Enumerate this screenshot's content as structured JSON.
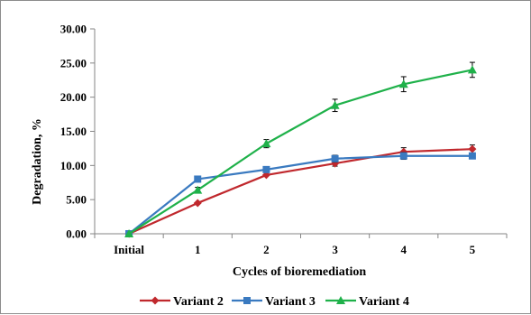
{
  "chart_data": {
    "type": "line",
    "categories": [
      "Initial",
      "1",
      "2",
      "3",
      "4",
      "5"
    ],
    "xlabel": "Cycles of bioremediation",
    "ylabel": "Degradation, %",
    "ylim": [
      0,
      30
    ],
    "yticks": [
      "0.00",
      "5.00",
      "10.00",
      "15.00",
      "20.00",
      "25.00",
      "30.00"
    ],
    "grid": false,
    "legend_position": "bottom",
    "series": [
      {
        "name": "Variant 2",
        "color": "#c0282d",
        "marker": "diamond",
        "values": [
          0,
          4.5,
          8.6,
          10.3,
          12.0,
          12.4
        ],
        "errors": [
          0,
          0,
          0,
          0.4,
          0.6,
          0.6
        ]
      },
      {
        "name": "Variant 3",
        "color": "#3a7ac0",
        "marker": "square",
        "values": [
          0,
          8.0,
          9.4,
          11.0,
          11.4,
          11.4
        ],
        "errors": [
          0,
          0,
          0,
          0.5,
          0.5,
          0.4
        ]
      },
      {
        "name": "Variant 4",
        "color": "#1fb14a",
        "marker": "triangle",
        "values": [
          0,
          6.4,
          13.2,
          18.8,
          21.9,
          24.0
        ],
        "errors": [
          0,
          0.4,
          0.6,
          0.9,
          1.1,
          1.1
        ]
      }
    ]
  }
}
